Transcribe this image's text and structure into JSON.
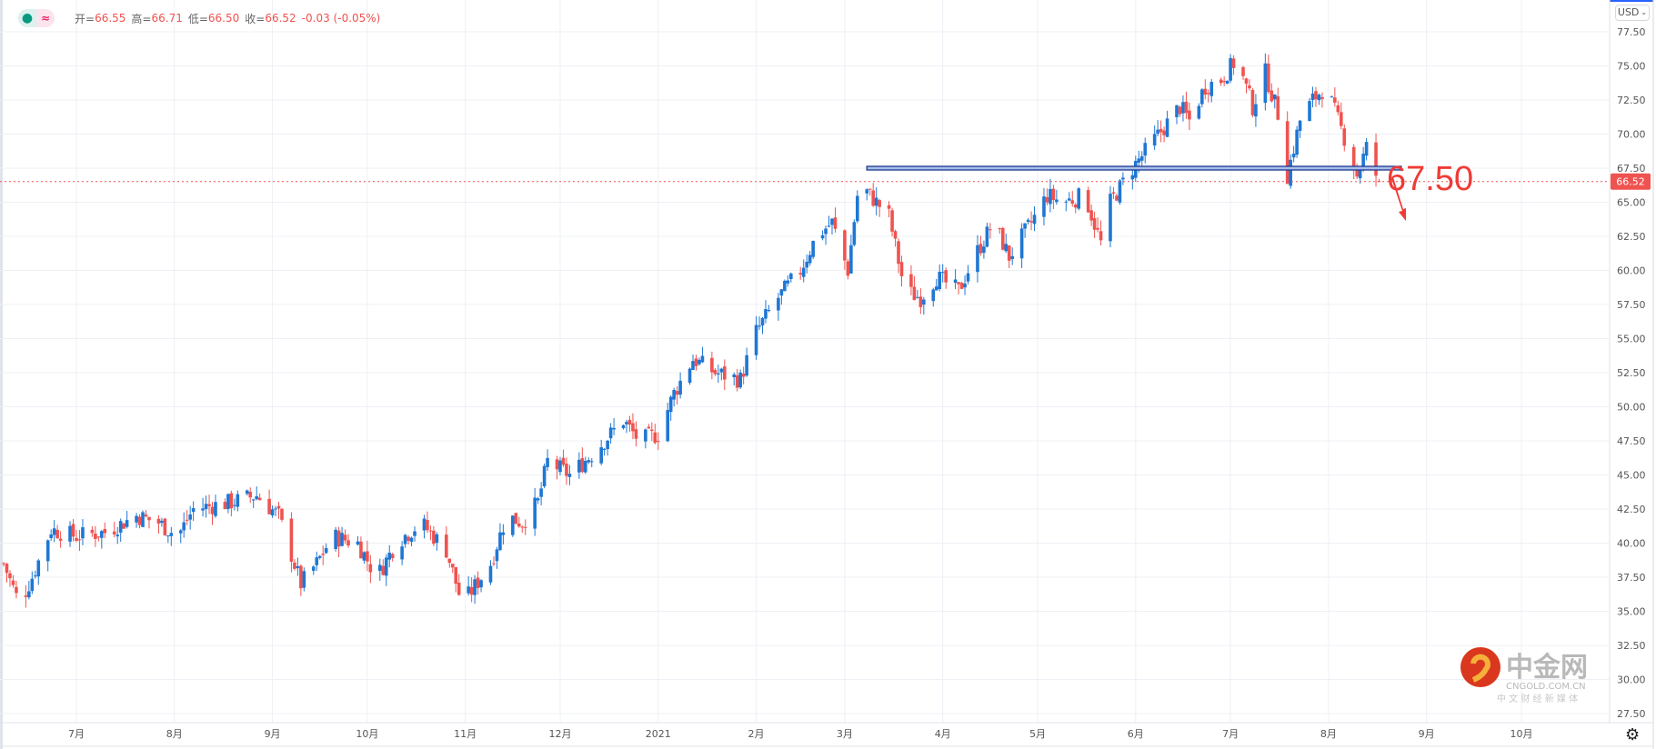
{
  "legend": {
    "symbol_icon": "dot-icon",
    "compare_icon": "approx-icon",
    "open_label": "开=",
    "open": "66.55",
    "high_label": "高=",
    "high": "66.71",
    "low_label": "低=",
    "low": "66.50",
    "close_label": "收=",
    "close": "66.52",
    "change": "-0.03 (-0.05%)"
  },
  "currency": "USD",
  "annotation": {
    "text": "67.50",
    "level": 67.5,
    "start": "2021-03-08",
    "end": "2021-08-24",
    "arrow": "down"
  },
  "watermark": {
    "brand": "中金网",
    "site": "CNGOLD.COM.CN",
    "tagline": "中 文 财 经 新 媒 体"
  },
  "colors": {
    "up": "#1f77d4",
    "down": "#ef5350",
    "annotation_line": "#1a3a8f",
    "annotation_fill": "#a9bdea",
    "grid": "#eef0f6",
    "text": "#ef3b36"
  },
  "chart_data": {
    "type": "candlestick",
    "ylim": [
      26.5,
      78.5
    ],
    "y_ticks": [
      77.5,
      75,
      72.5,
      70,
      67.5,
      65,
      62.5,
      60,
      57.5,
      55,
      52.5,
      50,
      47.5,
      45,
      42.5,
      40,
      37.5,
      35,
      32.5,
      30,
      27.5
    ],
    "x_ticks": [
      {
        "date": "2020-07-01",
        "label": "7月"
      },
      {
        "date": "2020-08-01",
        "label": "8月"
      },
      {
        "date": "2020-09-01",
        "label": "9月"
      },
      {
        "date": "2020-10-01",
        "label": "10月"
      },
      {
        "date": "2020-11-01",
        "label": "11月"
      },
      {
        "date": "2020-12-01",
        "label": "12月"
      },
      {
        "date": "2021-01-01",
        "label": "2021"
      },
      {
        "date": "2021-02-01",
        "label": "2月"
      },
      {
        "date": "2021-03-01",
        "label": "3月"
      },
      {
        "date": "2021-04-01",
        "label": "4月"
      },
      {
        "date": "2021-05-01",
        "label": "5月"
      },
      {
        "date": "2021-06-01",
        "label": "6月"
      },
      {
        "date": "2021-07-01",
        "label": "7月"
      },
      {
        "date": "2021-08-01",
        "label": "8月"
      },
      {
        "date": "2021-09-01",
        "label": "9月"
      },
      {
        "date": "2021-10-01",
        "label": "10月"
      }
    ],
    "last_price": 66.52,
    "last_candle": {
      "open": 66.55,
      "high": 66.71,
      "low": 66.5,
      "close": 66.52
    },
    "close_path": [
      [
        "2020-06-08",
        38.5
      ],
      [
        "2020-06-13",
        35.5
      ],
      [
        "2020-06-17",
        37.5
      ],
      [
        "2020-06-23",
        41
      ],
      [
        "2020-07-01",
        40.5
      ],
      [
        "2020-07-10",
        40.8
      ],
      [
        "2020-07-20",
        42
      ],
      [
        "2020-07-27",
        41.5
      ],
      [
        "2020-08-02",
        40.5
      ],
      [
        "2020-08-07",
        42.5
      ],
      [
        "2020-08-19",
        43
      ],
      [
        "2020-08-27",
        43.5
      ],
      [
        "2020-09-03",
        42
      ],
      [
        "2020-09-10",
        37
      ],
      [
        "2020-09-15",
        38.5
      ],
      [
        "2020-09-20",
        40.5
      ],
      [
        "2020-09-28",
        40
      ],
      [
        "2020-10-04",
        37.5
      ],
      [
        "2020-10-10",
        40
      ],
      [
        "2020-10-18",
        41.5
      ],
      [
        "2020-10-26",
        39.5
      ],
      [
        "2020-10-31",
        35.5
      ],
      [
        "2020-11-03",
        36.5
      ],
      [
        "2020-11-09",
        38.5
      ],
      [
        "2020-11-14",
        42
      ],
      [
        "2020-11-19",
        41.5
      ],
      [
        "2020-11-24",
        43
      ],
      [
        "2020-11-27",
        46
      ],
      [
        "2020-12-04",
        45
      ],
      [
        "2020-12-11",
        46.5
      ],
      [
        "2020-12-17",
        48
      ],
      [
        "2020-12-21",
        49
      ],
      [
        "2020-12-26",
        47.5
      ],
      [
        "2021-01-01",
        48
      ],
      [
        "2021-01-06",
        51
      ],
      [
        "2021-01-12",
        53.5
      ],
      [
        "2021-01-19",
        52.5
      ],
      [
        "2021-01-27",
        52
      ],
      [
        "2021-02-01",
        55.5
      ],
      [
        "2021-02-08",
        58
      ],
      [
        "2021-02-15",
        60
      ],
      [
        "2021-02-20",
        62.5
      ],
      [
        "2021-02-25",
        63.5
      ],
      [
        "2021-03-02",
        60
      ],
      [
        "2021-03-05",
        65.5
      ],
      [
        "2021-03-07",
        66
      ],
      [
        "2021-03-15",
        64
      ],
      [
        "2021-03-20",
        58.5
      ],
      [
        "2021-03-25",
        58
      ],
      [
        "2021-03-30",
        59.5
      ],
      [
        "2021-04-06",
        58.5
      ],
      [
        "2021-04-11",
        61
      ],
      [
        "2021-04-17",
        63.5
      ],
      [
        "2021-04-22",
        61
      ],
      [
        "2021-04-29",
        63.5
      ],
      [
        "2021-05-04",
        65.5
      ],
      [
        "2021-05-09",
        65
      ],
      [
        "2021-05-16",
        65.5
      ],
      [
        "2021-05-21",
        62
      ],
      [
        "2021-05-24",
        65
      ],
      [
        "2021-05-31",
        67.5
      ],
      [
        "2021-06-05",
        69
      ],
      [
        "2021-06-10",
        70.5
      ],
      [
        "2021-06-15",
        72
      ],
      [
        "2021-06-18",
        71
      ],
      [
        "2021-06-23",
        73.5
      ],
      [
        "2021-06-28",
        74
      ],
      [
        "2021-07-03",
        75.5
      ],
      [
        "2021-07-08",
        72
      ],
      [
        "2021-07-12",
        74.5
      ],
      [
        "2021-07-16",
        71.5
      ],
      [
        "2021-07-18",
        66
      ],
      [
        "2021-07-20",
        68
      ],
      [
        "2021-07-23",
        71
      ],
      [
        "2021-07-27",
        72.5
      ],
      [
        "2021-07-31",
        73.5
      ],
      [
        "2021-08-04",
        71
      ],
      [
        "2021-08-08",
        68.5
      ],
      [
        "2021-08-10",
        67
      ],
      [
        "2021-08-13",
        69
      ],
      [
        "2021-08-14",
        68
      ],
      [
        "2021-08-17",
        66.52
      ]
    ]
  }
}
